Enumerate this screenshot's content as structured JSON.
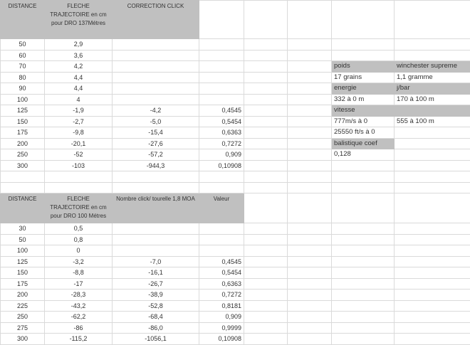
{
  "colors": {
    "header_gray": "#c0c0c0",
    "grid": "#dadada"
  },
  "top_table": {
    "headers": [
      "DISTANCE",
      "FLECHE TRAJECTOIRE en cm  pour DRO 137Métres",
      "CORRECTION CLICK",
      ""
    ],
    "rows": [
      [
        "50",
        "2,9",
        "",
        ""
      ],
      [
        "60",
        "3,6",
        "",
        ""
      ],
      [
        "70",
        "4,2",
        "",
        ""
      ],
      [
        "80",
        "4,4",
        "",
        ""
      ],
      [
        "90",
        "4,4",
        "",
        ""
      ],
      [
        "100",
        "4",
        "",
        ""
      ],
      [
        "125",
        "-1,9",
        "-4,2",
        "0,4545"
      ],
      [
        "150",
        "-2,7",
        "-5,0",
        "0,5454"
      ],
      [
        "175",
        "-9,8",
        "-15,4",
        "0,6363"
      ],
      [
        "200",
        "-20,1",
        "-27,6",
        "0,7272"
      ],
      [
        "250",
        "-52",
        "-57,2",
        "0,909"
      ],
      [
        "300",
        "-103",
        "-944,3",
        "0,10908"
      ]
    ]
  },
  "info_panel": [
    {
      "left": "poids",
      "right": "winchester supreme",
      "gray_left": true,
      "gray_right": true
    },
    {
      "left": "17 grains",
      "right": "1,1 gramme"
    },
    {
      "left": "energie",
      "right": "j/bar",
      "gray_left": true,
      "gray_right": true
    },
    {
      "left": "332 à 0 m",
      "right": "170 à 100 m"
    },
    {
      "left": "vitesse",
      "right": "",
      "gray_left": true,
      "gray_right": true
    },
    {
      "left": "777m/s à 0",
      "right": "555 à 100 m"
    },
    {
      "left": "25550 ft/s à 0",
      "right": ""
    },
    {
      "left": "balistique coef",
      "right": "",
      "gray_left": true
    },
    {
      "left": "0,128",
      "right": ""
    }
  ],
  "bottom_table": {
    "headers": [
      "DISTANCE",
      "FLECHE TRAJECTOIRE en cm  pour DRO 100 Métres",
      "Nombre click/ tourelle 1,8 MOA",
      "Valeur"
    ],
    "rows": [
      [
        "30",
        "0,5",
        "",
        ""
      ],
      [
        "50",
        "0,8",
        "",
        ""
      ],
      [
        "100",
        "0",
        "",
        ""
      ],
      [
        "125",
        "-3,2",
        "-7,0",
        "0,4545"
      ],
      [
        "150",
        "-8,8",
        "-16,1",
        "0,5454"
      ],
      [
        "175",
        "-17",
        "-26,7",
        "0,6363"
      ],
      [
        "200",
        "-28,3",
        "-38,9",
        "0,7272"
      ],
      [
        "225",
        "-43,2",
        "-52,8",
        "0,8181"
      ],
      [
        "250",
        "-62,2",
        "-68,4",
        "0,909"
      ],
      [
        "275",
        "-86",
        "-86,0",
        "0,9999"
      ],
      [
        "300",
        "-115,2",
        "-1056,1",
        "0,10908"
      ]
    ]
  }
}
